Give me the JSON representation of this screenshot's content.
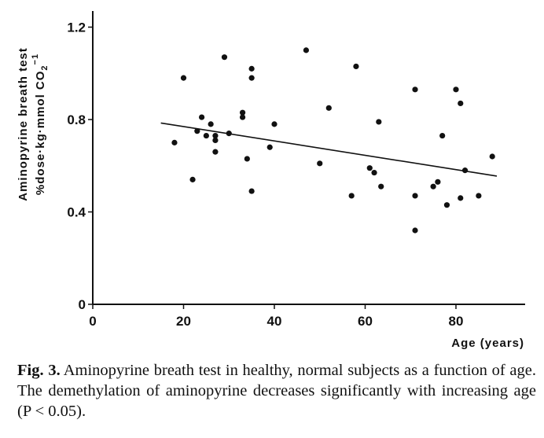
{
  "chart_data": {
    "type": "scatter",
    "xlabel": "Age (years)",
    "ylabel_line1": "Aminopyrine breath test",
    "ylabel_line2": "%dose·kg·mmol CO",
    "ylabel_sub": "2",
    "ylabel_sup": "−1",
    "x_ticks": [
      "0",
      "20",
      "40",
      "60",
      "80"
    ],
    "y_ticks": [
      "0",
      "0.4",
      "0.8",
      "1.2"
    ],
    "xlim": [
      0,
      95
    ],
    "ylim": [
      0,
      1.25
    ],
    "grid": false,
    "points": [
      {
        "x": 18,
        "y": 0.7
      },
      {
        "x": 20,
        "y": 0.98
      },
      {
        "x": 22,
        "y": 0.54
      },
      {
        "x": 23,
        "y": 0.75
      },
      {
        "x": 24,
        "y": 0.81
      },
      {
        "x": 25,
        "y": 0.73
      },
      {
        "x": 26,
        "y": 0.78
      },
      {
        "x": 27,
        "y": 0.73
      },
      {
        "x": 27,
        "y": 0.71
      },
      {
        "x": 27,
        "y": 0.66
      },
      {
        "x": 29,
        "y": 1.07
      },
      {
        "x": 30,
        "y": 0.74
      },
      {
        "x": 33,
        "y": 0.83
      },
      {
        "x": 33,
        "y": 0.81
      },
      {
        "x": 34,
        "y": 0.63
      },
      {
        "x": 35,
        "y": 1.02
      },
      {
        "x": 35,
        "y": 0.98
      },
      {
        "x": 35,
        "y": 0.49
      },
      {
        "x": 39,
        "y": 0.68
      },
      {
        "x": 40,
        "y": 0.78
      },
      {
        "x": 47,
        "y": 1.1
      },
      {
        "x": 50,
        "y": 0.61
      },
      {
        "x": 52,
        "y": 0.85
      },
      {
        "x": 57,
        "y": 0.47
      },
      {
        "x": 58,
        "y": 1.03
      },
      {
        "x": 61,
        "y": 0.59
      },
      {
        "x": 62,
        "y": 0.57
      },
      {
        "x": 63,
        "y": 0.79
      },
      {
        "x": 63.5,
        "y": 0.51
      },
      {
        "x": 71,
        "y": 0.93
      },
      {
        "x": 71,
        "y": 0.47
      },
      {
        "x": 71,
        "y": 0.32
      },
      {
        "x": 75,
        "y": 0.51
      },
      {
        "x": 76,
        "y": 0.53
      },
      {
        "x": 77,
        "y": 0.73
      },
      {
        "x": 78,
        "y": 0.43
      },
      {
        "x": 80,
        "y": 0.93
      },
      {
        "x": 81,
        "y": 0.87
      },
      {
        "x": 81,
        "y": 0.46
      },
      {
        "x": 82,
        "y": 0.58
      },
      {
        "x": 85,
        "y": 0.47
      },
      {
        "x": 88,
        "y": 0.64
      }
    ],
    "regression_line": {
      "x": [
        15,
        89
      ],
      "y": [
        0.785,
        0.555
      ]
    }
  },
  "caption": {
    "label": "Fig. 3.",
    "text": "Aminopyrine breath test in healthy, normal subjects as a function of age. The demethylation of aminopyrine decreases significantly with increasing age (P < 0.05)."
  }
}
